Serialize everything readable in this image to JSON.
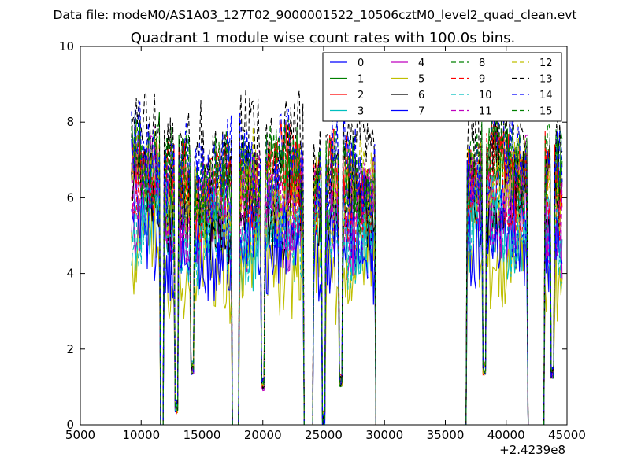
{
  "page": {
    "header": "Data file: modeM0/AS1A03_127T02_9000001522_10506cztM0_level2_quad_clean.evt"
  },
  "chart_data": {
    "type": "line",
    "title": "Quadrant 1 module wise count rates with 100.0s bins.",
    "xlabel": "",
    "ylabel": "",
    "xlim": [
      5000,
      45000
    ],
    "ylim": [
      0,
      10
    ],
    "x_ticks": [
      5000,
      10000,
      15000,
      20000,
      25000,
      30000,
      35000,
      40000,
      45000
    ],
    "y_ticks": [
      0,
      2,
      4,
      6,
      8,
      10
    ],
    "x_tick_labels": [
      "5000",
      "10000",
      "15000",
      "20000",
      "25000",
      "30000",
      "35000",
      "40000",
      "45000"
    ],
    "y_tick_labels": [
      "0",
      "2",
      "4",
      "6",
      "8",
      "10"
    ],
    "x_offset_label": "+2.4239e8",
    "legend_position": "top-right",
    "segments": [
      {
        "x_start": 9200,
        "x_end": 11500,
        "level": 6.5
      },
      {
        "x_start": 11900,
        "x_end": 17400,
        "level": 5.8
      },
      {
        "x_start": 18100,
        "x_end": 23300,
        "level": 6.0
      },
      {
        "x_start": 24200,
        "x_end": 29200,
        "level": 5.9
      },
      {
        "x_start": 36800,
        "x_end": 41700,
        "level": 6.2
      },
      {
        "x_start": 43200,
        "x_end": 44600,
        "level": 5.8
      }
    ],
    "dips": [
      {
        "x": 11700,
        "y": 0.0
      },
      {
        "x": 12900,
        "y": 0.3
      },
      {
        "x": 14200,
        "y": 1.3
      },
      {
        "x": 17700,
        "y": 0.0
      },
      {
        "x": 20000,
        "y": 0.9
      },
      {
        "x": 23600,
        "y": 0.0
      },
      {
        "x": 25000,
        "y": 0.0
      },
      {
        "x": 26400,
        "y": 1.0
      },
      {
        "x": 29500,
        "y": 0.0
      },
      {
        "x": 33000,
        "y": 0.0
      },
      {
        "x": 36400,
        "y": 0.0
      },
      {
        "x": 38200,
        "y": 1.3
      },
      {
        "x": 41900,
        "y": 0.0
      },
      {
        "x": 42300,
        "y": 0.0
      },
      {
        "x": 42700,
        "y": 0.0
      },
      {
        "x": 43800,
        "y": 1.2
      }
    ],
    "series": [
      {
        "name": "0",
        "color": "#0000ff",
        "style": "solid",
        "offset": -0.2
      },
      {
        "name": "1",
        "color": "#008000",
        "style": "solid",
        "offset": 0.4
      },
      {
        "name": "2",
        "color": "#ff0000",
        "style": "solid",
        "offset": 0.5
      },
      {
        "name": "3",
        "color": "#00bfbf",
        "style": "solid",
        "offset": -1.0
      },
      {
        "name": "4",
        "color": "#bf00bf",
        "style": "solid",
        "offset": -0.6
      },
      {
        "name": "5",
        "color": "#bfbf00",
        "style": "solid",
        "offset": -1.8
      },
      {
        "name": "6",
        "color": "#000000",
        "style": "solid",
        "offset": -0.3
      },
      {
        "name": "7",
        "color": "#0000ff",
        "style": "solid",
        "offset": -1.3
      },
      {
        "name": "8",
        "color": "#008000",
        "style": "dashed",
        "offset": 0.6
      },
      {
        "name": "9",
        "color": "#ff0000",
        "style": "dashed",
        "offset": 0.2
      },
      {
        "name": "10",
        "color": "#00bfbf",
        "style": "dashed",
        "offset": -0.8
      },
      {
        "name": "11",
        "color": "#bf00bf",
        "style": "dashed",
        "offset": -0.1
      },
      {
        "name": "12",
        "color": "#bfbf00",
        "style": "dashed",
        "offset": 0.3
      },
      {
        "name": "13",
        "color": "#000000",
        "style": "dashed",
        "offset": 1.6
      },
      {
        "name": "14",
        "color": "#0000ff",
        "style": "dashed",
        "offset": 0.9
      },
      {
        "name": "15",
        "color": "#008000",
        "style": "dashed",
        "offset": 0.7
      }
    ]
  }
}
